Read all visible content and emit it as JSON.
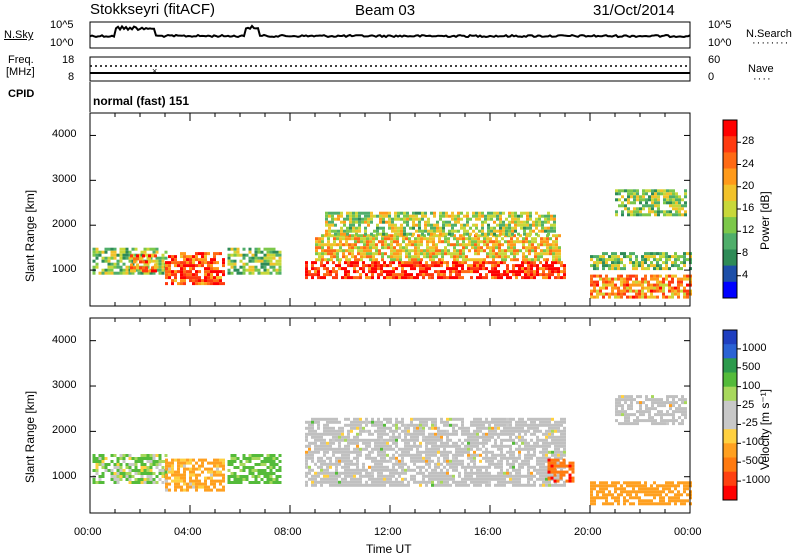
{
  "header": {
    "radar": "Stokkseyri (fitACF)",
    "beam": "Beam 03",
    "date": "31/Oct/2014"
  },
  "top_panels": {
    "nsky_label": "N.Sky",
    "nsky_ticks": [
      "10^5",
      "10^0"
    ],
    "nsearch_label": "N.Search",
    "nsearch_ticks": [
      "10^5",
      "10^0"
    ],
    "freq_label_1": "Freq.",
    "freq_label_2": "[MHz]",
    "freq_ticks": [
      "18",
      "8"
    ],
    "nave_label": "Nave",
    "nave_ticks": [
      "60",
      "0"
    ],
    "cpid_label": "CPID",
    "cpid_value": "normal (fast) 151"
  },
  "colors": {
    "power": [
      "#0000ff",
      "#1d4fa8",
      "#2e8b57",
      "#4fae6a",
      "#7cc84a",
      "#c8d83a",
      "#f2c22a",
      "#ff9a1a",
      "#ff6a14",
      "#ff3a10",
      "#ff0000"
    ],
    "velocity": [
      "#1f3fc0",
      "#2a62d4",
      "#2c9a4c",
      "#54bb3a",
      "#a8d85c",
      "#c8c8c8",
      "#c8c8c8",
      "#ffd040",
      "#ffa020",
      "#ff7a10",
      "#ff4010",
      "#ff0000"
    ],
    "ground_scatter": "#c0c0c0"
  },
  "chart_data": [
    {
      "type": "heatmap",
      "panel": "power",
      "ylabel": "Slant Range [km]",
      "y_ticks": [
        "4000",
        "3000",
        "2000",
        "1000"
      ],
      "ylim": [
        200,
        4500
      ],
      "x_ticks": [
        "00:00",
        "04:00",
        "08:00",
        "12:00",
        "16:00",
        "20:00",
        "00:00"
      ],
      "xlim_hours": [
        0,
        24
      ],
      "colorbar_label": "Power [dB]",
      "colorbar_ticks": [
        "28",
        "24",
        "20",
        "16",
        "12",
        "8",
        "4"
      ],
      "colorbar_range": [
        0,
        30
      ],
      "regions": [
        {
          "t": [
            0.1,
            3.0
          ],
          "r": [
            900,
            1500
          ],
          "power": 12
        },
        {
          "t": [
            1.6,
            2.6
          ],
          "r": [
            950,
            1350
          ],
          "power": 24
        },
        {
          "t": [
            3.0,
            5.4
          ],
          "r": [
            700,
            1400
          ],
          "power": 26
        },
        {
          "t": [
            5.5,
            7.6
          ],
          "r": [
            900,
            1500
          ],
          "power": 12
        },
        {
          "t": [
            8.6,
            19.0
          ],
          "r": [
            800,
            1200
          ],
          "power": 28
        },
        {
          "t": [
            9.0,
            18.8
          ],
          "r": [
            1200,
            1800
          ],
          "power": 18
        },
        {
          "t": [
            9.4,
            18.6
          ],
          "r": [
            1800,
            2300
          ],
          "power": 14
        },
        {
          "t": [
            20.0,
            24.0
          ],
          "r": [
            400,
            900
          ],
          "power": 22
        },
        {
          "t": [
            20.0,
            24.0
          ],
          "r": [
            1000,
            1400
          ],
          "power": 12
        },
        {
          "t": [
            21.0,
            23.8
          ],
          "r": [
            2200,
            2800
          ],
          "power": 12
        }
      ]
    },
    {
      "type": "heatmap",
      "panel": "velocity",
      "ylabel": "Slant Range [km]",
      "y_ticks": [
        "4000",
        "3000",
        "2000",
        "1000"
      ],
      "ylim": [
        200,
        4500
      ],
      "x_ticks": [
        "00:00",
        "04:00",
        "08:00",
        "12:00",
        "16:00",
        "20:00",
        "00:00"
      ],
      "xlabel": "Time UT",
      "xlim_hours": [
        0,
        24
      ],
      "colorbar_label": "Velocity [m s⁻¹]",
      "colorbar_ticks": [
        "1000",
        "500",
        "100",
        "25",
        "-25",
        "-100",
        "-500",
        "-1000"
      ],
      "colorbar_range": [
        -1200,
        1200
      ],
      "regions": [
        {
          "t": [
            0.1,
            3.0
          ],
          "r": [
            900,
            1500
          ],
          "vel": 100
        },
        {
          "t": [
            3.0,
            5.4
          ],
          "r": [
            700,
            1400
          ],
          "vel": -150
        },
        {
          "t": [
            5.5,
            7.6
          ],
          "r": [
            900,
            1500
          ],
          "vel": 200
        },
        {
          "t": [
            8.6,
            19.0
          ],
          "r": [
            800,
            2300
          ],
          "vel": 0,
          "ground_scatter": true
        },
        {
          "t": [
            18.3,
            19.3
          ],
          "r": [
            900,
            1400
          ],
          "vel": -900
        },
        {
          "t": [
            20.0,
            24.0
          ],
          "r": [
            400,
            900
          ],
          "vel": -300
        },
        {
          "t": [
            21.0,
            23.8
          ],
          "r": [
            2200,
            2800
          ],
          "vel": 0,
          "ground_scatter": true
        }
      ]
    }
  ]
}
